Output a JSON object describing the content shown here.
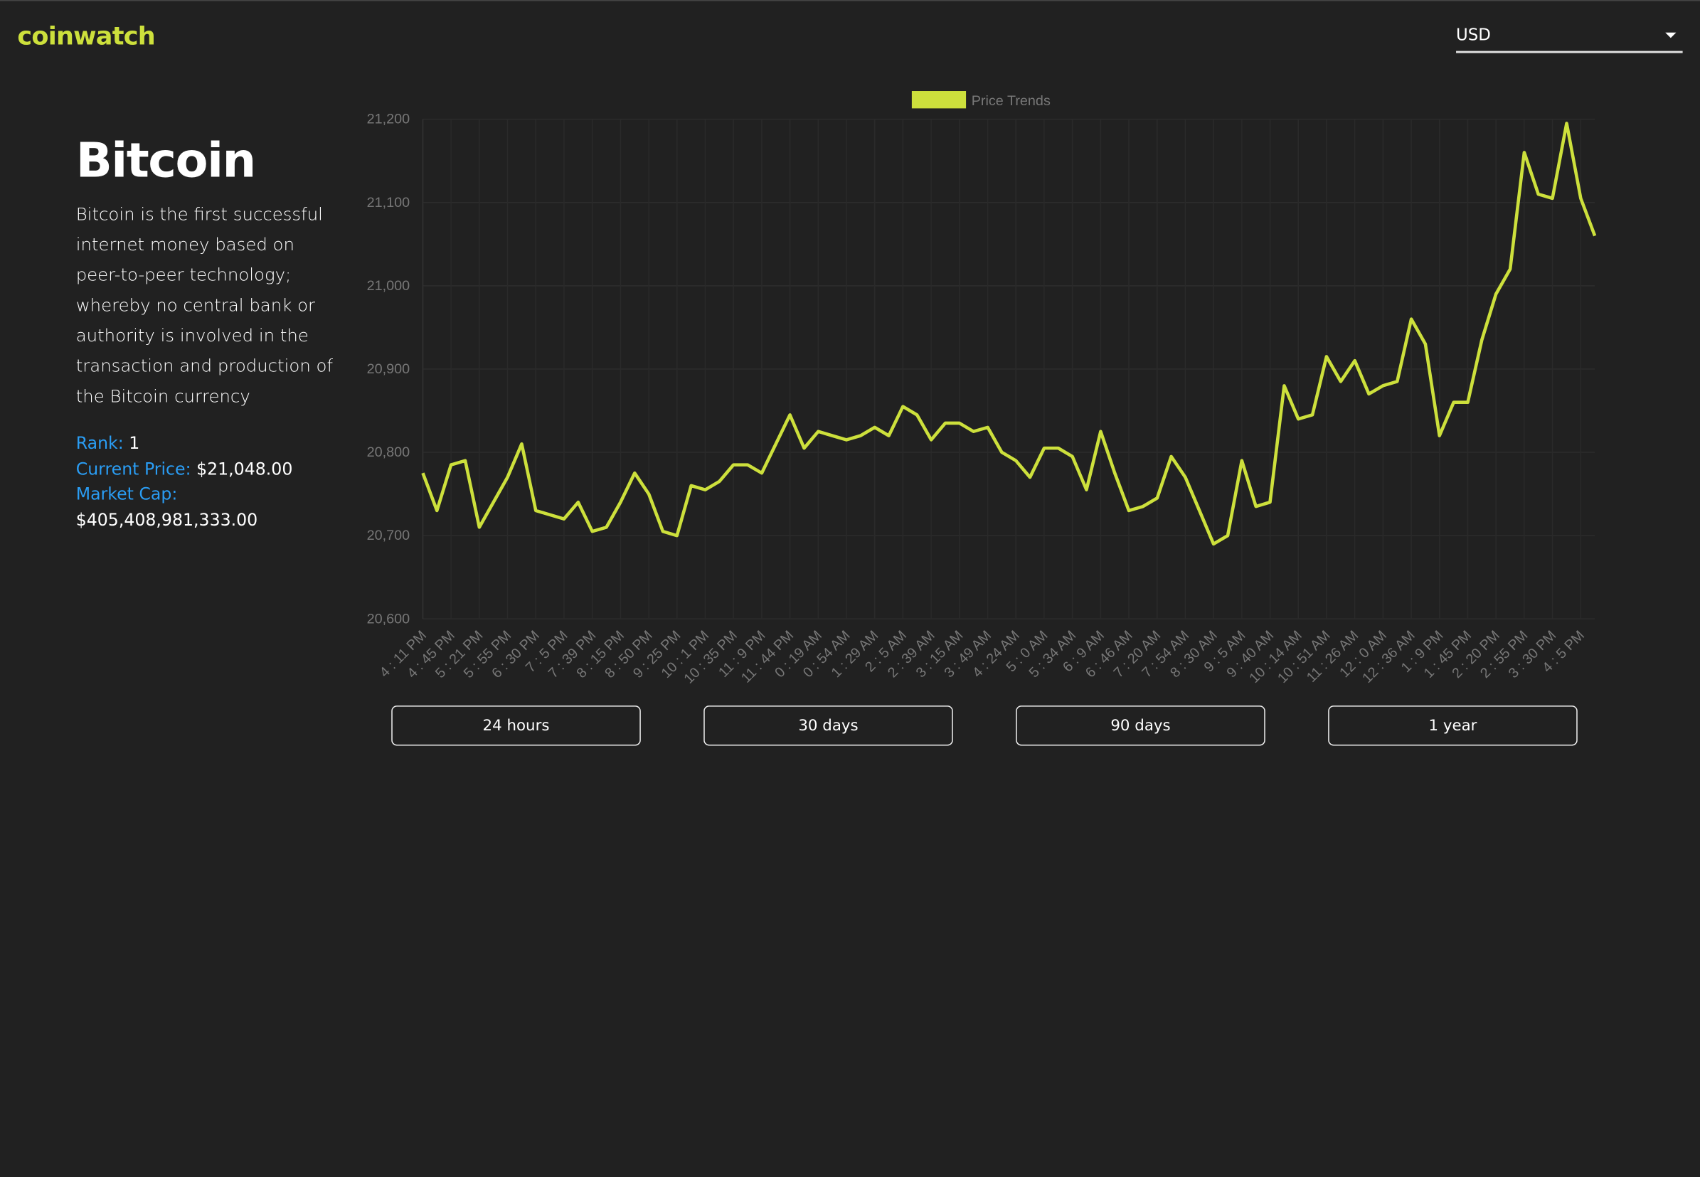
{
  "header": {
    "brand": "coinwatch",
    "currency": "USD"
  },
  "coin": {
    "name": "Bitcoin",
    "description": "Bitcoin is the first successful internet money based on peer-to-peer technology; whereby no central bank or authority is involved in the transaction and production of the Bitcoin currency",
    "rank_label": "Rank:",
    "rank": "1",
    "price_label": "Current Price:",
    "price": "$21,048.00",
    "market_cap_label": "Market Cap:",
    "market_cap": "$405,408,981,333.00"
  },
  "chart_data": {
    "type": "line",
    "categories": [
      "4 : 11 PM",
      null,
      "4 : 45 PM",
      null,
      "5 : 21 PM",
      null,
      "5 : 55 PM",
      null,
      "6 : 30 PM",
      null,
      "7 : 5 PM",
      null,
      "7 : 39 PM",
      null,
      "8 : 15 PM",
      null,
      "8 : 50 PM",
      null,
      "9 : 25 PM",
      null,
      "10 : 1 PM",
      null,
      "10 : 35 PM",
      null,
      "11 : 9 PM",
      null,
      "11 : 44 PM",
      null,
      "0 : 19 AM",
      null,
      "0 : 54 AM",
      null,
      "1 : 29 AM",
      null,
      "2 : 5 AM",
      null,
      "2 : 39 AM",
      null,
      "3 : 15 AM",
      null,
      "3 : 49 AM",
      null,
      "4 : 24 AM",
      null,
      "5 : 0 AM",
      null,
      "5 : 34 AM",
      null,
      "6 : 9 AM",
      null,
      "6 : 46 AM",
      null,
      "7 : 20 AM",
      null,
      "7 : 54 AM",
      null,
      "8 : 30 AM",
      null,
      "9 : 5 AM",
      null,
      "9 : 40 AM",
      null,
      "10 : 14 AM",
      null,
      "10 : 51 AM",
      null,
      "11 : 26 AM",
      null,
      "12 : 0 AM",
      null,
      "12 : 36 AM",
      null,
      "1 : 9 PM",
      null,
      "1 : 45 PM",
      null,
      "2 : 20 PM",
      null,
      "2 : 55 PM",
      null,
      "3 : 30 PM",
      null,
      "4 : 5 PM",
      null
    ],
    "series": [
      {
        "name": "Price Trends",
        "color": "#cde03c",
        "values": [
          20775,
          20730,
          20785,
          20790,
          20710,
          20740,
          20770,
          20810,
          20730,
          20725,
          20720,
          20740,
          20705,
          20710,
          20740,
          20775,
          20750,
          20705,
          20700,
          20760,
          20755,
          20765,
          20785,
          20785,
          20775,
          20810,
          20845,
          20805,
          20825,
          20820,
          20815,
          20820,
          20830,
          20820,
          20855,
          20845,
          20815,
          20835,
          20835,
          20825,
          20830,
          20800,
          20790,
          20770,
          20805,
          20805,
          20795,
          20755,
          20825,
          20775,
          20730,
          20735,
          20745,
          20795,
          20770,
          20730,
          20690,
          20700,
          20790,
          20735,
          20740,
          20880,
          20840,
          20845,
          20915,
          20885,
          20910,
          20870,
          20880,
          20885,
          20960,
          20930,
          20820,
          20860,
          20860,
          20935,
          20990,
          21020,
          21160,
          21110,
          21105,
          21195,
          21105,
          21060
        ]
      }
    ],
    "ylim": [
      20600,
      21200
    ],
    "yticks": [
      {
        "value": 20600,
        "label": "20,600"
      },
      {
        "value": 20700,
        "label": "20,700"
      },
      {
        "value": 20800,
        "label": "20,800"
      },
      {
        "value": 20900,
        "label": "20,900"
      },
      {
        "value": 21000,
        "label": "21,000"
      },
      {
        "value": 21100,
        "label": "21,100"
      },
      {
        "value": 21200,
        "label": "21,200"
      }
    ],
    "grid": true,
    "legend": "top"
  },
  "buttons": [
    "24 hours",
    "30 days",
    "90 days",
    "1 year"
  ]
}
